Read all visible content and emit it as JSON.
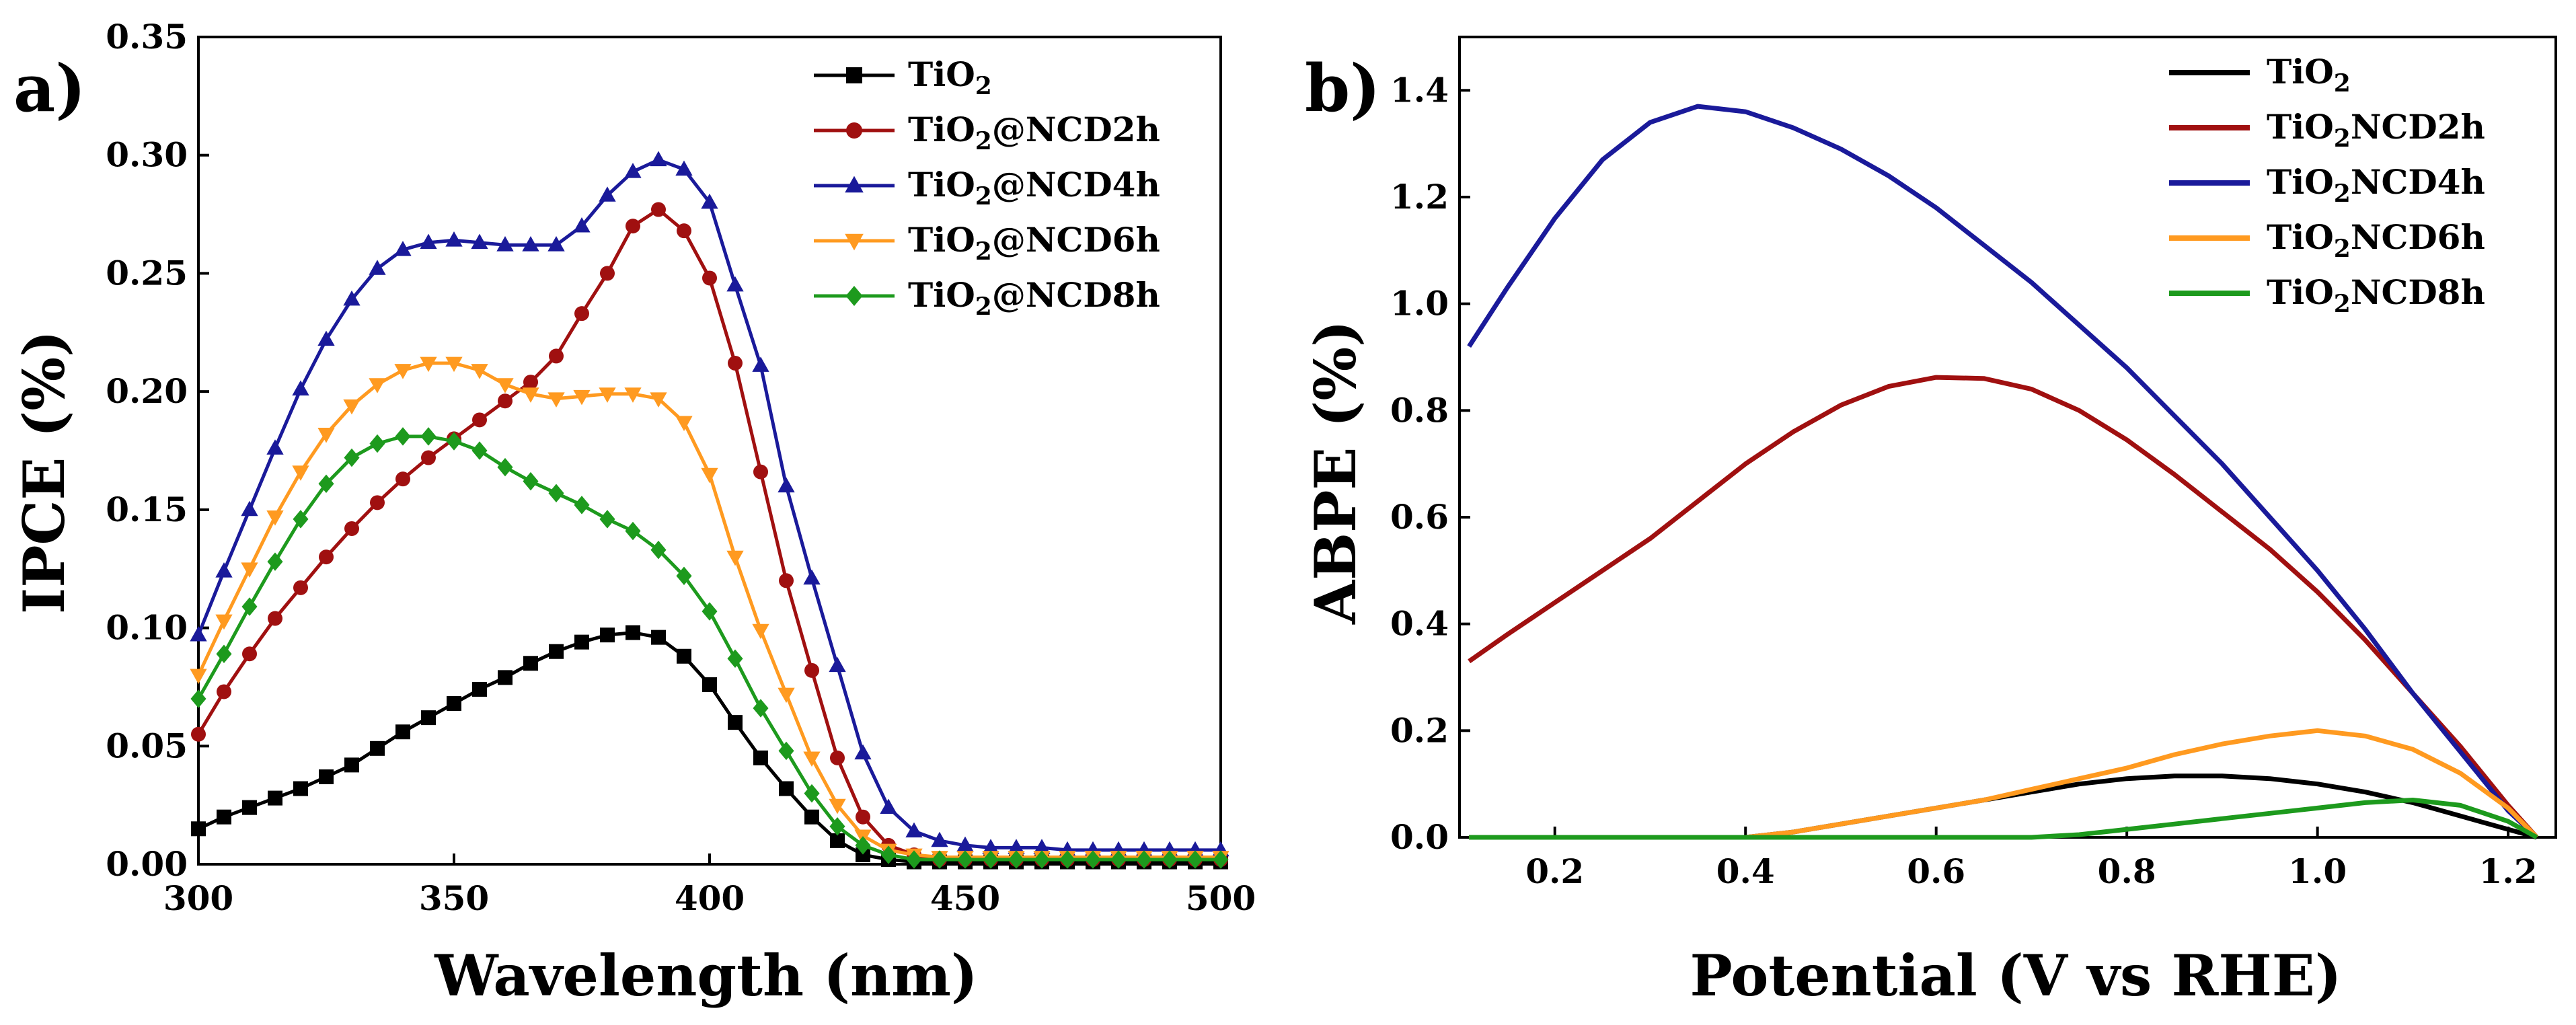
{
  "chart_data": [
    {
      "type": "line",
      "panel": "a)",
      "xlabel": "Wavelength (nm)",
      "ylabel": "IPCE (%)",
      "xlim": [
        300,
        500
      ],
      "ylim": [
        0,
        0.35
      ],
      "xticks": [
        "300",
        "350",
        "400",
        "450",
        "500"
      ],
      "yticks": [
        "0.00",
        "0.05",
        "0.10",
        "0.15",
        "0.20",
        "0.25",
        "0.30",
        "0.35"
      ],
      "markers": true,
      "legend_position": "top-right",
      "x": [
        300,
        305,
        310,
        315,
        320,
        325,
        330,
        335,
        340,
        345,
        350,
        355,
        360,
        365,
        370,
        375,
        380,
        385,
        390,
        395,
        400,
        405,
        410,
        415,
        420,
        425,
        430,
        435,
        440,
        445,
        450,
        455,
        460,
        465,
        470,
        475,
        480,
        485,
        490,
        495,
        500
      ],
      "series": [
        {
          "name": "TiO2",
          "label_base": "TiO",
          "label_sub": "2",
          "label_suffix": "",
          "color": "#000000",
          "marker": "square",
          "values": [
            0.015,
            0.02,
            0.024,
            0.028,
            0.032,
            0.037,
            0.042,
            0.049,
            0.056,
            0.062,
            0.068,
            0.074,
            0.079,
            0.085,
            0.09,
            0.094,
            0.097,
            0.098,
            0.096,
            0.088,
            0.076,
            0.06,
            0.045,
            0.032,
            0.02,
            0.01,
            0.004,
            0.002,
            0.001,
            0.001,
            0.001,
            0.001,
            0.001,
            0.001,
            0.001,
            0.001,
            0.001,
            0.001,
            0.001,
            0.001,
            0.001
          ]
        },
        {
          "name": "TiO2@NCD2h",
          "label_base": "TiO",
          "label_sub": "2",
          "label_suffix": "@NCD2h",
          "color": "#a01010",
          "marker": "circle",
          "values": [
            0.055,
            0.073,
            0.089,
            0.104,
            0.117,
            0.13,
            0.142,
            0.153,
            0.163,
            0.172,
            0.18,
            0.188,
            0.196,
            0.204,
            0.215,
            0.233,
            0.25,
            0.27,
            0.277,
            0.268,
            0.248,
            0.212,
            0.166,
            0.12,
            0.082,
            0.045,
            0.02,
            0.008,
            0.004,
            0.002,
            0.002,
            0.002,
            0.002,
            0.002,
            0.002,
            0.002,
            0.002,
            0.002,
            0.002,
            0.002,
            0.002
          ]
        },
        {
          "name": "TiO2@NCD4h",
          "label_base": "TiO",
          "label_sub": "2",
          "label_suffix": "@NCD4h",
          "color": "#1a1a9a",
          "marker": "triangle-up",
          "values": [
            0.097,
            0.124,
            0.15,
            0.176,
            0.201,
            0.222,
            0.239,
            0.252,
            0.26,
            0.263,
            0.264,
            0.263,
            0.262,
            0.262,
            0.262,
            0.27,
            0.283,
            0.293,
            0.298,
            0.294,
            0.28,
            0.245,
            0.211,
            0.16,
            0.121,
            0.084,
            0.047,
            0.024,
            0.014,
            0.01,
            0.008,
            0.007,
            0.007,
            0.007,
            0.006,
            0.006,
            0.006,
            0.006,
            0.006,
            0.006,
            0.006
          ]
        },
        {
          "name": "TiO2@NCD6h",
          "label_base": "TiO",
          "label_sub": "2",
          "label_suffix": "@NCD6h",
          "color": "#ff9a20",
          "marker": "triangle-down",
          "values": [
            0.08,
            0.103,
            0.125,
            0.147,
            0.166,
            0.182,
            0.194,
            0.203,
            0.209,
            0.212,
            0.212,
            0.209,
            0.203,
            0.199,
            0.197,
            0.198,
            0.199,
            0.199,
            0.197,
            0.187,
            0.165,
            0.13,
            0.099,
            0.072,
            0.045,
            0.025,
            0.012,
            0.006,
            0.004,
            0.003,
            0.003,
            0.003,
            0.003,
            0.003,
            0.003,
            0.003,
            0.003,
            0.003,
            0.003,
            0.003,
            0.003
          ]
        },
        {
          "name": "TiO2@NCD8h",
          "label_base": "TiO",
          "label_sub": "2",
          "label_suffix": "@NCD8h",
          "color": "#1d9a1d",
          "marker": "diamond",
          "values": [
            0.07,
            0.089,
            0.109,
            0.128,
            0.146,
            0.161,
            0.172,
            0.178,
            0.181,
            0.181,
            0.179,
            0.175,
            0.168,
            0.162,
            0.157,
            0.152,
            0.146,
            0.141,
            0.133,
            0.122,
            0.107,
            0.087,
            0.066,
            0.048,
            0.03,
            0.016,
            0.008,
            0.004,
            0.002,
            0.002,
            0.002,
            0.002,
            0.002,
            0.002,
            0.002,
            0.002,
            0.002,
            0.002,
            0.002,
            0.002,
            0.002
          ]
        }
      ]
    },
    {
      "type": "line",
      "panel": "b)",
      "xlabel": "Potential (V vs RHE)",
      "ylabel": "ABPE (%)",
      "xlim": [
        0.1,
        1.25
      ],
      "ylim": [
        0,
        1.5
      ],
      "xticks": [
        "0.2",
        "0.4",
        "0.6",
        "0.8",
        "1.0",
        "1.2"
      ],
      "yticks": [
        "0.0",
        "0.2",
        "0.4",
        "0.6",
        "0.8",
        "1.0",
        "1.2",
        "1.4"
      ],
      "markers": false,
      "legend_position": "top-right",
      "x": [
        0.11,
        0.15,
        0.2,
        0.25,
        0.3,
        0.35,
        0.4,
        0.45,
        0.5,
        0.55,
        0.6,
        0.65,
        0.7,
        0.75,
        0.8,
        0.85,
        0.9,
        0.95,
        1.0,
        1.05,
        1.1,
        1.15,
        1.2,
        1.23
      ],
      "series": [
        {
          "name": "TiO2",
          "label_base": "TiO",
          "label_sub": "2",
          "label_suffix": "",
          "color": "#000000",
          "values": [
            0.0,
            0.0,
            0.0,
            0.0,
            0.0,
            0.0,
            0.0,
            0.01,
            0.025,
            0.04,
            0.055,
            0.07,
            0.085,
            0.1,
            0.11,
            0.115,
            0.115,
            0.11,
            0.1,
            0.085,
            0.065,
            0.04,
            0.015,
            0.0
          ]
        },
        {
          "name": "TiO2NCD2h",
          "label_base": "TiO",
          "label_sub": "2",
          "label_suffix": "NCD2h",
          "color": "#a01010",
          "values": [
            0.33,
            0.38,
            0.44,
            0.5,
            0.56,
            0.63,
            0.7,
            0.76,
            0.81,
            0.845,
            0.862,
            0.86,
            0.84,
            0.8,
            0.745,
            0.68,
            0.61,
            0.54,
            0.46,
            0.37,
            0.27,
            0.17,
            0.06,
            0.0
          ]
        },
        {
          "name": "TiO2NCD4h",
          "label_base": "TiO",
          "label_sub": "2",
          "label_suffix": "NCD4h",
          "color": "#1a1a9a",
          "values": [
            0.92,
            1.03,
            1.16,
            1.27,
            1.34,
            1.37,
            1.36,
            1.33,
            1.29,
            1.24,
            1.18,
            1.11,
            1.04,
            0.96,
            0.88,
            0.79,
            0.7,
            0.6,
            0.5,
            0.39,
            0.27,
            0.16,
            0.05,
            0.0
          ]
        },
        {
          "name": "TiO2NCD6h",
          "label_base": "TiO",
          "label_sub": "2",
          "label_suffix": "NCD6h",
          "color": "#ff9a20",
          "values": [
            0.0,
            0.0,
            0.0,
            0.0,
            0.0,
            0.0,
            0.0,
            0.01,
            0.025,
            0.04,
            0.055,
            0.07,
            0.09,
            0.11,
            0.13,
            0.155,
            0.175,
            0.19,
            0.2,
            0.19,
            0.165,
            0.12,
            0.055,
            0.0
          ]
        },
        {
          "name": "TiO2NCD8h",
          "label_base": "TiO",
          "label_sub": "2",
          "label_suffix": "NCD8h",
          "color": "#1d9a1d",
          "values": [
            0.0,
            0.0,
            0.0,
            0.0,
            0.0,
            0.0,
            0.0,
            0.0,
            0.0,
            0.0,
            0.0,
            0.0,
            0.0,
            0.005,
            0.015,
            0.025,
            0.035,
            0.045,
            0.055,
            0.065,
            0.07,
            0.06,
            0.03,
            0.0
          ]
        }
      ]
    }
  ]
}
